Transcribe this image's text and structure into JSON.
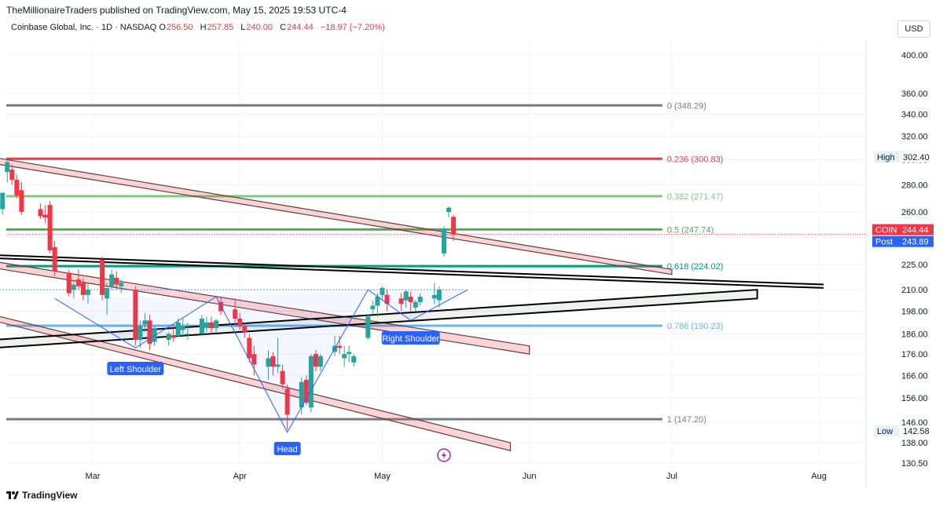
{
  "header": {
    "published": "TheMillionaireTraders published on TradingView.com, May 15, 2025 19:53 UTC-4"
  },
  "symbol": {
    "name": "Coinbase Global, Inc. · 1D · NASDAQ",
    "o_label": "O",
    "o": "256.50",
    "h_label": "H",
    "h": "257.85",
    "l_label": "L",
    "l": "240.00",
    "c_label": "C",
    "c": "244.44",
    "change": "−18.97 (−7.20%)"
  },
  "currency": "USD",
  "footer": {
    "brand": "TradingView",
    "logo_icon": "tradingview-logo-icon"
  },
  "colors": {
    "up": "#26a69a",
    "down": "#f23645",
    "text": "#131722",
    "muted": "#787b86",
    "blue": "#2962ff"
  },
  "chart_data": {
    "type": "candlestick",
    "y_scale": "log",
    "ylim": [
      130.5,
      420
    ],
    "y_ticks": [
      "130.50",
      "138.00",
      "146.00",
      "156.00",
      "166.00",
      "176.00",
      "186.00",
      "198.00",
      "210.00",
      "225.00",
      "260.00",
      "280.00",
      "300.00",
      "320.00",
      "340.00",
      "360.00",
      "400.00"
    ],
    "x_ticks": [
      {
        "label": "Mar",
        "date": "2025-03-01"
      },
      {
        "label": "Apr",
        "date": "2025-04-01"
      },
      {
        "label": "May",
        "date": "2025-05-01"
      },
      {
        "label": "Jun",
        "date": "2025-06-01"
      },
      {
        "label": "Jul",
        "date": "2025-07-01"
      },
      {
        "label": "Aug",
        "date": "2025-08-01"
      }
    ],
    "price_tags": [
      {
        "label": "High",
        "value": "302.40",
        "price": 302.4,
        "style": "light"
      },
      {
        "label": "COIN",
        "value": "244.44",
        "price": 244.44,
        "style": "red"
      },
      {
        "label": "Post",
        "value": "243.89",
        "price": 243.89,
        "style": "blue"
      },
      {
        "label": "Low",
        "value": "142.58",
        "price": 142.58,
        "style": "light"
      }
    ],
    "fib_levels": [
      {
        "ratio": "0",
        "label": "0 (348.29)",
        "price": 348.29,
        "color": "#787b86"
      },
      {
        "ratio": "0.236",
        "label": "0.236 (300.83)",
        "price": 300.83,
        "color": "#f23645"
      },
      {
        "ratio": "0.382",
        "label": "0.382 (271.47)",
        "price": 271.47,
        "color": "#81c784"
      },
      {
        "ratio": "0.5",
        "label": "0.5 (247.74)",
        "price": 247.74,
        "color": "#4caf50"
      },
      {
        "ratio": "0.618",
        "label": "0.618 (224.02)",
        "price": 224.02,
        "color": "#089981"
      },
      {
        "ratio": "0.786",
        "label": "0.786 (190.23)",
        "price": 190.23,
        "color": "#64b5f6"
      },
      {
        "ratio": "1",
        "label": "1 (147.20)",
        "price": 147.2,
        "color": "#787b86"
      }
    ],
    "pattern_labels": [
      "Left Shoulder",
      "Head",
      "Right Shoulder"
    ],
    "candles": [
      {
        "d": "2025-02-10",
        "o": 262,
        "h": 274,
        "l": 258,
        "c": 274
      },
      {
        "d": "2025-02-11",
        "o": 290,
        "h": 301,
        "l": 282,
        "c": 298
      },
      {
        "d": "2025-02-12",
        "o": 292,
        "h": 296,
        "l": 280,
        "c": 284
      },
      {
        "d": "2025-02-13",
        "o": 284,
        "h": 288,
        "l": 270,
        "c": 272
      },
      {
        "d": "2025-02-14",
        "o": 276,
        "h": 282,
        "l": 258,
        "c": 260
      },
      {
        "d": "2025-02-18",
        "o": 262,
        "h": 266,
        "l": 255,
        "c": 257
      },
      {
        "d": "2025-02-19",
        "o": 258,
        "h": 265,
        "l": 252,
        "c": 256
      },
      {
        "d": "2025-02-20",
        "o": 265,
        "h": 268,
        "l": 232,
        "c": 234
      },
      {
        "d": "2025-02-21",
        "o": 236,
        "h": 240,
        "l": 218,
        "c": 221
      },
      {
        "d": "2025-02-24",
        "o": 220,
        "h": 222,
        "l": 206,
        "c": 208
      },
      {
        "d": "2025-02-25",
        "o": 210,
        "h": 215,
        "l": 205,
        "c": 213
      },
      {
        "d": "2025-02-26",
        "o": 216,
        "h": 222,
        "l": 210,
        "c": 212
      },
      {
        "d": "2025-02-27",
        "o": 214,
        "h": 217,
        "l": 204,
        "c": 207
      },
      {
        "d": "2025-02-28",
        "o": 207,
        "h": 214,
        "l": 202,
        "c": 210
      },
      {
        "d": "2025-03-03",
        "o": 228,
        "h": 230,
        "l": 204,
        "c": 207
      },
      {
        "d": "2025-03-04",
        "o": 205,
        "h": 214,
        "l": 196,
        "c": 211
      },
      {
        "d": "2025-03-05",
        "o": 212,
        "h": 222,
        "l": 210,
        "c": 219
      },
      {
        "d": "2025-03-06",
        "o": 217,
        "h": 221,
        "l": 210,
        "c": 213
      },
      {
        "d": "2025-03-07",
        "o": 212,
        "h": 216,
        "l": 208,
        "c": 214
      },
      {
        "d": "2025-03-10",
        "o": 210,
        "h": 212,
        "l": 180,
        "c": 183
      },
      {
        "d": "2025-03-11",
        "o": 183,
        "h": 193,
        "l": 179,
        "c": 190
      },
      {
        "d": "2025-03-12",
        "o": 191,
        "h": 197,
        "l": 187,
        "c": 193
      },
      {
        "d": "2025-03-13",
        "o": 193,
        "h": 196,
        "l": 178,
        "c": 181
      },
      {
        "d": "2025-03-14",
        "o": 182,
        "h": 190,
        "l": 180,
        "c": 189
      },
      {
        "d": "2025-03-17",
        "o": 183,
        "h": 187,
        "l": 180,
        "c": 186
      },
      {
        "d": "2025-03-18",
        "o": 185,
        "h": 191,
        "l": 182,
        "c": 184
      },
      {
        "d": "2025-03-19",
        "o": 185,
        "h": 194,
        "l": 184,
        "c": 192
      },
      {
        "d": "2025-03-20",
        "o": 188,
        "h": 194,
        "l": 185,
        "c": 190
      },
      {
        "d": "2025-03-21",
        "o": 186,
        "h": 192,
        "l": 183,
        "c": 186
      },
      {
        "d": "2025-03-24",
        "o": 186,
        "h": 196,
        "l": 185,
        "c": 194
      },
      {
        "d": "2025-03-25",
        "o": 189,
        "h": 195,
        "l": 187,
        "c": 192
      },
      {
        "d": "2025-03-26",
        "o": 192,
        "h": 195,
        "l": 186,
        "c": 189
      },
      {
        "d": "2025-03-27",
        "o": 189,
        "h": 194,
        "l": 187,
        "c": 193
      },
      {
        "d": "2025-03-28",
        "o": 203,
        "h": 206,
        "l": 196,
        "c": 198
      },
      {
        "d": "2025-03-31",
        "o": 199,
        "h": 205,
        "l": 190,
        "c": 194
      },
      {
        "d": "2025-04-01",
        "o": 194,
        "h": 197,
        "l": 188,
        "c": 190
      },
      {
        "d": "2025-04-02",
        "o": 190,
        "h": 192,
        "l": 184,
        "c": 187
      },
      {
        "d": "2025-04-03",
        "o": 184,
        "h": 186,
        "l": 172,
        "c": 174
      },
      {
        "d": "2025-04-04",
        "o": 176,
        "h": 180,
        "l": 166,
        "c": 171
      },
      {
        "d": "2025-04-07",
        "o": 170,
        "h": 178,
        "l": 164,
        "c": 174
      },
      {
        "d": "2025-04-08",
        "o": 175,
        "h": 177,
        "l": 166,
        "c": 170
      },
      {
        "d": "2025-04-09",
        "o": 170,
        "h": 184,
        "l": 167,
        "c": 171
      },
      {
        "d": "2025-04-10",
        "o": 168,
        "h": 171,
        "l": 160,
        "c": 162
      },
      {
        "d": "2025-04-11",
        "o": 160,
        "h": 162,
        "l": 143,
        "c": 149
      },
      {
        "d": "2025-04-14",
        "o": 152,
        "h": 165,
        "l": 149,
        "c": 163
      },
      {
        "d": "2025-04-15",
        "o": 164,
        "h": 166,
        "l": 153,
        "c": 154
      },
      {
        "d": "2025-04-16",
        "o": 152,
        "h": 176,
        "l": 150,
        "c": 175
      },
      {
        "d": "2025-04-17",
        "o": 176,
        "h": 178,
        "l": 168,
        "c": 170
      },
      {
        "d": "2025-04-18",
        "o": 170,
        "h": 176,
        "l": 168,
        "c": 175
      },
      {
        "d": "2025-04-21",
        "o": 177,
        "h": 185,
        "l": 175,
        "c": 180
      },
      {
        "d": "2025-04-22",
        "o": 180,
        "h": 185,
        "l": 176,
        "c": 179
      },
      {
        "d": "2025-04-23",
        "o": 174,
        "h": 180,
        "l": 170,
        "c": 176
      },
      {
        "d": "2025-04-24",
        "o": 176,
        "h": 180,
        "l": 172,
        "c": 177
      },
      {
        "d": "2025-04-25",
        "o": 172,
        "h": 176,
        "l": 170,
        "c": 175
      },
      {
        "d": "2025-04-28",
        "o": 184,
        "h": 196,
        "l": 183,
        "c": 195
      },
      {
        "d": "2025-04-29",
        "o": 199,
        "h": 204,
        "l": 196,
        "c": 201
      },
      {
        "d": "2025-04-30",
        "o": 201,
        "h": 208,
        "l": 195,
        "c": 206
      },
      {
        "d": "2025-05-01",
        "o": 207,
        "h": 212,
        "l": 204,
        "c": 211
      },
      {
        "d": "2025-05-02",
        "o": 207,
        "h": 210,
        "l": 198,
        "c": 202
      },
      {
        "d": "2025-05-05",
        "o": 205,
        "h": 208,
        "l": 198,
        "c": 202
      },
      {
        "d": "2025-05-06",
        "o": 204,
        "h": 210,
        "l": 200,
        "c": 209
      },
      {
        "d": "2025-05-07",
        "o": 206,
        "h": 209,
        "l": 198,
        "c": 203
      },
      {
        "d": "2025-05-08",
        "o": 200,
        "h": 204,
        "l": 198,
        "c": 203
      },
      {
        "d": "2025-05-09",
        "o": 203,
        "h": 208,
        "l": 201,
        "c": 206
      },
      {
        "d": "2025-05-12",
        "o": 205,
        "h": 214,
        "l": 202,
        "c": 207
      },
      {
        "d": "2025-05-13",
        "o": 204,
        "h": 212,
        "l": 200,
        "c": 210
      },
      {
        "d": "2025-05-14",
        "o": 232,
        "h": 250,
        "l": 230,
        "c": 248
      },
      {
        "d": "2025-05-15",
        "o": 260,
        "h": 264,
        "l": 256,
        "c": 263
      },
      {
        "d": "2025-05-16",
        "o": 256.5,
        "h": 257.85,
        "l": 240,
        "c": 244.44
      }
    ]
  }
}
